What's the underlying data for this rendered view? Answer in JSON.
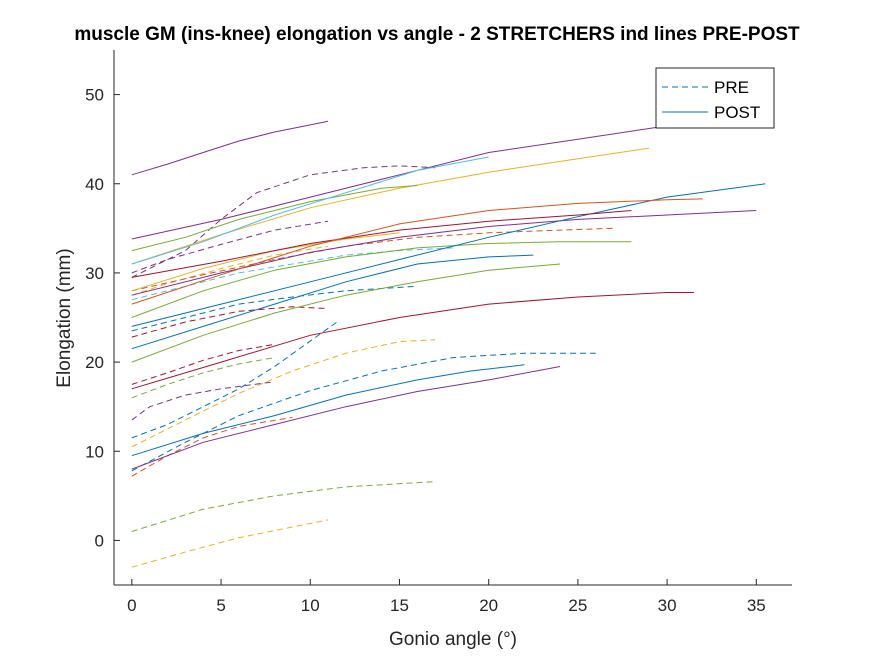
{
  "chart_data": {
    "type": "line",
    "title": "muscle GM (ins-knee) elongation vs angle - 2 STRETCHERS ind lines PRE-POST",
    "xlabel": "Gonio angle (°)",
    "ylabel": "Elongation (mm)",
    "xlim": [
      -1,
      37
    ],
    "ylim": [
      -5,
      55
    ],
    "xticks": [
      0,
      5,
      10,
      15,
      20,
      25,
      30,
      35
    ],
    "yticks": [
      0,
      10,
      20,
      30,
      40,
      50
    ],
    "grid": false,
    "legend": {
      "placement": "top-right",
      "entries": [
        {
          "label": "PRE",
          "style": "dashed"
        },
        {
          "label": "POST",
          "style": "solid"
        }
      ]
    },
    "series": [
      {
        "group": "PRE",
        "color": "#7E2F8E",
        "x": [
          0,
          2,
          5,
          8,
          11
        ],
        "y": [
          30.0,
          31.5,
          33.2,
          34.8,
          35.8
        ]
      },
      {
        "group": "PRE",
        "color": "#7E2F8E",
        "x": [
          0,
          3,
          5,
          7,
          10,
          13,
          15,
          17
        ],
        "y": [
          29.5,
          32.5,
          36.0,
          39.0,
          41.0,
          41.8,
          42.0,
          41.8
        ]
      },
      {
        "group": "PRE",
        "color": "#7E2F8E",
        "x": [
          0,
          1,
          3,
          5,
          8
        ],
        "y": [
          13.5,
          15.0,
          16.3,
          17.0,
          17.8
        ]
      },
      {
        "group": "PRE",
        "color": "#EDB120",
        "x": [
          0,
          3,
          6,
          9,
          12,
          15,
          17
        ],
        "y": [
          10.5,
          13.5,
          16.5,
          19.0,
          21.0,
          22.3,
          22.5
        ]
      },
      {
        "group": "PRE",
        "color": "#EDB120",
        "x": [
          0,
          3,
          6,
          9,
          11
        ],
        "y": [
          -3.0,
          -1.3,
          0.3,
          1.5,
          2.3
        ]
      },
      {
        "group": "PRE",
        "color": "#EDB120",
        "x": [
          0,
          2,
          5,
          8,
          11
        ],
        "y": [
          27.5,
          28.8,
          30.5,
          32.0,
          33.0
        ]
      },
      {
        "group": "PRE",
        "color": "#77AC30",
        "x": [
          0,
          4,
          8,
          12,
          17
        ],
        "y": [
          1.0,
          3.5,
          5.0,
          6.0,
          6.6
        ]
      },
      {
        "group": "PRE",
        "color": "#77AC30",
        "x": [
          0,
          2,
          4,
          6,
          8
        ],
        "y": [
          16.0,
          17.5,
          18.8,
          19.8,
          20.5
        ]
      },
      {
        "group": "PRE",
        "color": "#0072BD",
        "x": [
          0,
          3,
          6,
          10,
          14,
          18,
          22,
          26
        ],
        "y": [
          7.8,
          11.0,
          14.0,
          16.8,
          19.0,
          20.5,
          21.0,
          21.0
        ]
      },
      {
        "group": "PRE",
        "color": "#0072BD",
        "x": [
          0,
          3,
          6,
          9,
          12,
          16
        ],
        "y": [
          23.5,
          25.0,
          26.5,
          27.3,
          28.0,
          28.5
        ]
      },
      {
        "group": "PRE",
        "color": "#0072BD",
        "x": [
          0,
          2,
          4,
          6,
          8,
          11.5
        ],
        "y": [
          11.5,
          13.0,
          15.0,
          17.0,
          19.5,
          24.5
        ]
      },
      {
        "group": "PRE",
        "color": "#4DBEEE",
        "x": [
          0,
          3,
          6,
          9,
          12,
          15,
          18
        ],
        "y": [
          27.0,
          28.5,
          30.0,
          31.0,
          32.0,
          32.5,
          32.8
        ]
      },
      {
        "group": "PRE",
        "color": "#A2142F",
        "x": [
          0,
          2,
          4,
          6,
          8
        ],
        "y": [
          17.5,
          18.8,
          20.2,
          21.3,
          22.0
        ]
      },
      {
        "group": "PRE",
        "color": "#A2142F",
        "x": [
          0,
          3,
          6,
          9,
          11
        ],
        "y": [
          22.8,
          24.5,
          25.7,
          26.2,
          26.0
        ]
      },
      {
        "group": "PRE",
        "color": "#D95319",
        "x": [
          0,
          2,
          4,
          6,
          9
        ],
        "y": [
          7.2,
          9.5,
          11.5,
          12.8,
          13.8
        ]
      },
      {
        "group": "PRE",
        "color": "#D95319",
        "x": [
          0,
          4,
          8,
          12,
          16,
          20,
          24,
          27
        ],
        "y": [
          28.0,
          29.8,
          31.5,
          33.0,
          34.0,
          34.5,
          34.8,
          35.0
        ]
      },
      {
        "group": "POST",
        "color": "#7E2F8E",
        "x": [
          0,
          2,
          4,
          6,
          8,
          11
        ],
        "y": [
          41.0,
          42.2,
          43.5,
          44.8,
          45.8,
          47.0
        ]
      },
      {
        "group": "POST",
        "color": "#7E2F8E",
        "x": [
          0,
          5,
          10,
          15,
          20,
          25,
          30,
          33
        ],
        "y": [
          33.8,
          36.0,
          38.5,
          41.0,
          43.5,
          45.0,
          46.5,
          47.0
        ]
      },
      {
        "group": "POST",
        "color": "#7E2F8E",
        "x": [
          0,
          5,
          10,
          15,
          20,
          25,
          30,
          35
        ],
        "y": [
          27.5,
          30.0,
          32.3,
          34.0,
          35.2,
          36.0,
          36.5,
          37.0
        ]
      },
      {
        "group": "POST",
        "color": "#7E2F8E",
        "x": [
          0,
          4,
          8,
          12,
          16,
          20,
          24
        ],
        "y": [
          8.0,
          11.0,
          13.0,
          15.0,
          16.7,
          18.0,
          19.5
        ]
      },
      {
        "group": "POST",
        "color": "#EDB120",
        "x": [
          0,
          5,
          10,
          15,
          20,
          25,
          29
        ],
        "y": [
          31.0,
          34.3,
          37.3,
          39.5,
          41.3,
          42.8,
          44.0
        ]
      },
      {
        "group": "POST",
        "color": "#EDB120",
        "x": [
          0,
          4,
          8,
          12,
          15
        ],
        "y": [
          28.0,
          30.5,
          32.5,
          33.8,
          34.5
        ]
      },
      {
        "group": "POST",
        "color": "#77AC30",
        "x": [
          0,
          4,
          8,
          12,
          16,
          20,
          24
        ],
        "y": [
          20.0,
          23.0,
          25.5,
          27.5,
          29.0,
          30.3,
          31.0
        ]
      },
      {
        "group": "POST",
        "color": "#77AC30",
        "x": [
          0,
          4,
          8,
          12,
          16,
          20,
          24,
          28
        ],
        "y": [
          25.0,
          28.0,
          30.3,
          31.8,
          32.8,
          33.3,
          33.5,
          33.5
        ]
      },
      {
        "group": "POST",
        "color": "#77AC30",
        "x": [
          0,
          3,
          6,
          10,
          14,
          16
        ],
        "y": [
          32.5,
          34.0,
          36.0,
          38.0,
          39.5,
          39.8
        ]
      },
      {
        "group": "POST",
        "color": "#0072BD",
        "x": [
          0,
          5,
          10,
          15,
          20,
          25,
          30,
          35.5
        ],
        "y": [
          24.0,
          26.5,
          29.0,
          31.5,
          34.0,
          36.3,
          38.5,
          40.0
        ]
      },
      {
        "group": "POST",
        "color": "#0072BD",
        "x": [
          0,
          4,
          8,
          12,
          16,
          20,
          22.5
        ],
        "y": [
          21.5,
          24.0,
          26.5,
          29.0,
          31.0,
          31.8,
          32.0
        ]
      },
      {
        "group": "POST",
        "color": "#0072BD",
        "x": [
          0,
          4,
          8,
          12,
          16,
          19,
          22
        ],
        "y": [
          9.5,
          12.0,
          14.0,
          16.3,
          18.0,
          19.0,
          19.7
        ]
      },
      {
        "group": "POST",
        "color": "#4DBEEE",
        "x": [
          0,
          4,
          8,
          12,
          16,
          20
        ],
        "y": [
          31.0,
          33.5,
          36.5,
          39.0,
          41.5,
          43.0
        ]
      },
      {
        "group": "POST",
        "color": "#A2142F",
        "x": [
          0,
          5,
          10,
          15,
          20,
          25,
          30,
          31.5
        ],
        "y": [
          17.0,
          20.0,
          23.0,
          25.0,
          26.5,
          27.3,
          27.8,
          27.8
        ]
      },
      {
        "group": "POST",
        "color": "#A2142F",
        "x": [
          0,
          5,
          10,
          15,
          20,
          25,
          28
        ],
        "y": [
          29.5,
          31.3,
          33.3,
          34.8,
          35.8,
          36.5,
          37.0
        ]
      },
      {
        "group": "POST",
        "color": "#D95319",
        "x": [
          0,
          5,
          10,
          15,
          20,
          25,
          30,
          32
        ],
        "y": [
          26.5,
          29.8,
          33.0,
          35.5,
          37.0,
          37.8,
          38.2,
          38.3
        ]
      }
    ]
  }
}
